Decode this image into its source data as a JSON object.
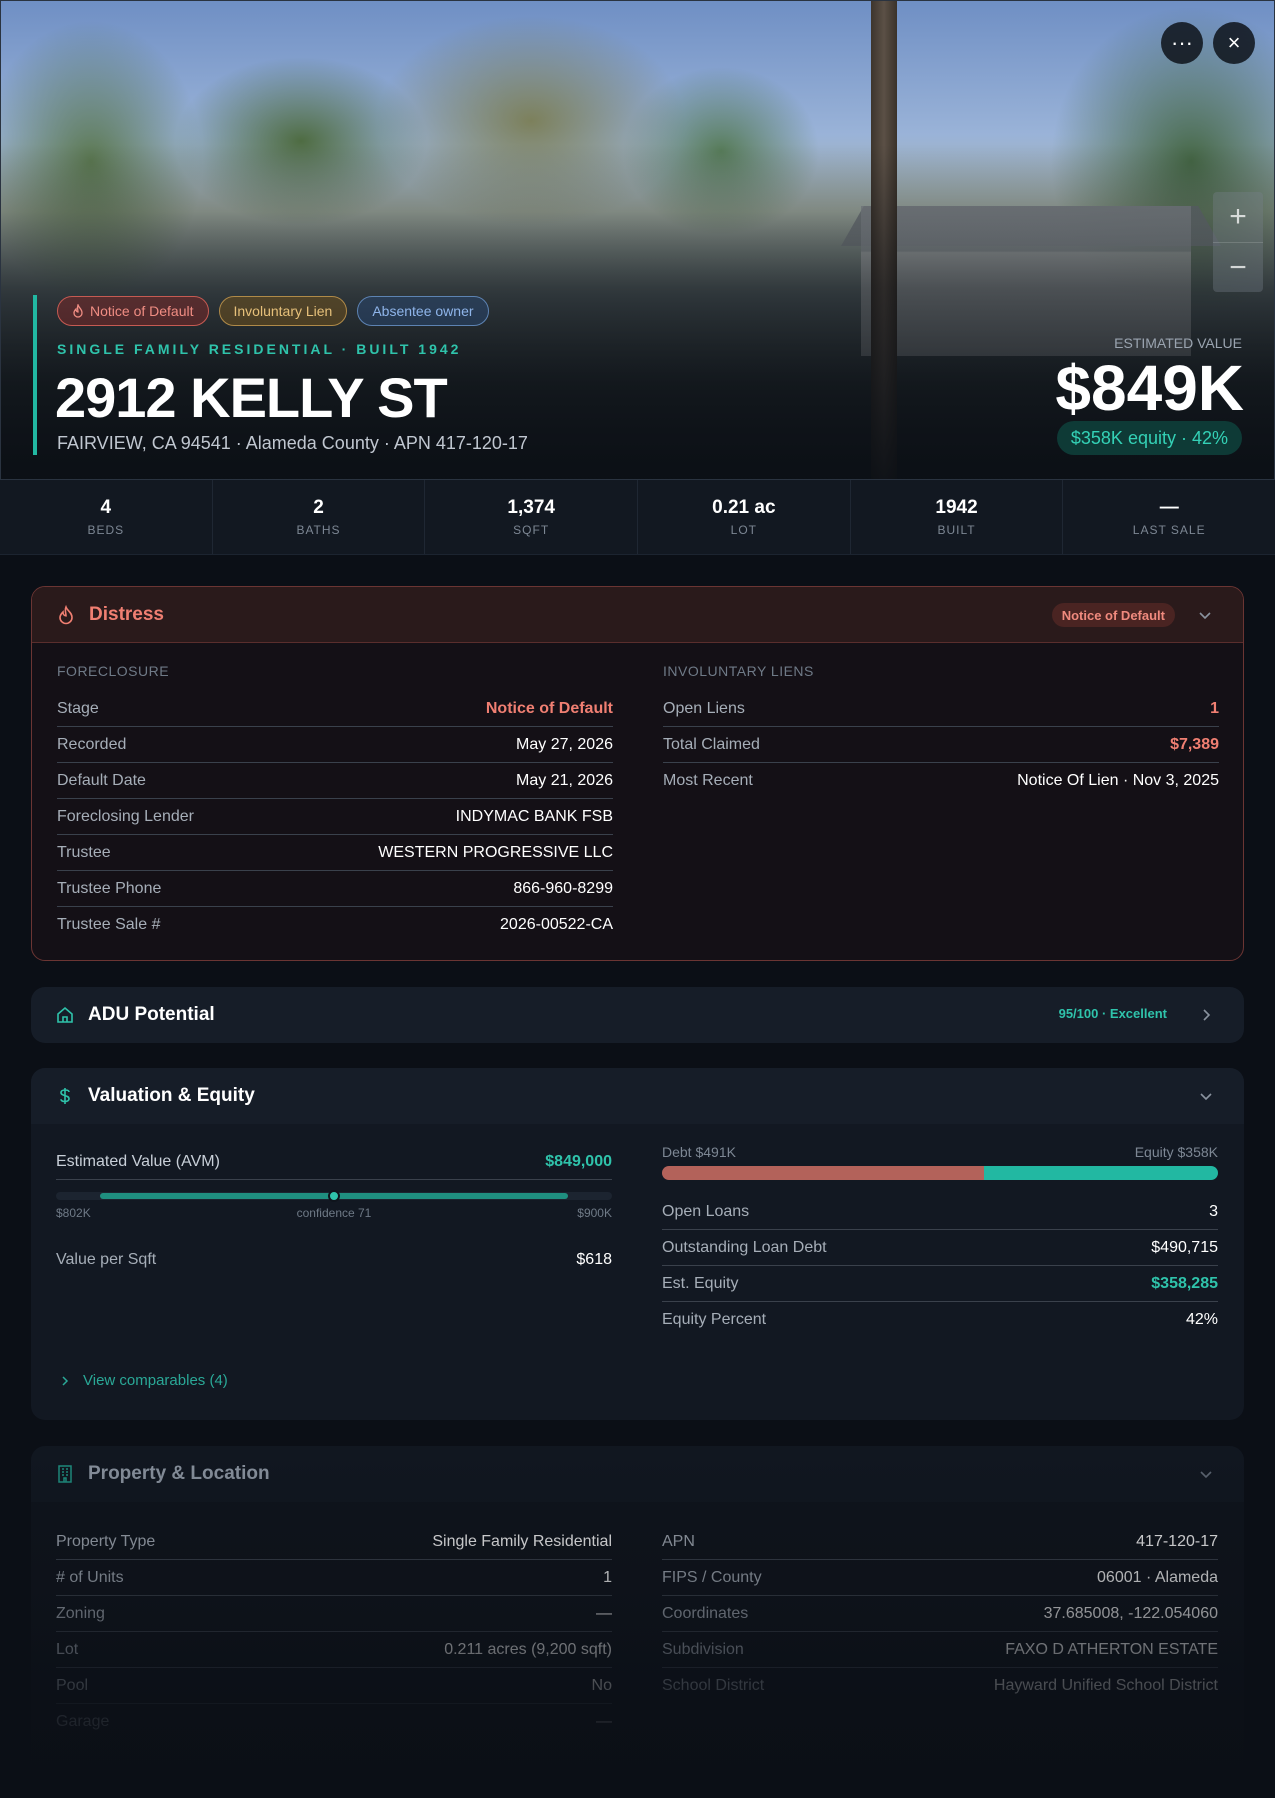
{
  "hero": {
    "tags": [
      "Notice of Default",
      "Involuntary Lien",
      "Absentee owner"
    ],
    "subtitle": "SINGLE FAMILY RESIDENTIAL · BUILT 1942",
    "address": "2912 KELLY ST",
    "location": "FAIRVIEW, CA 94541 · Alameda County · APN 417-120-17",
    "estimated_label": "ESTIMATED VALUE",
    "estimated_value": "$849K",
    "equity_pill": "$358K equity · 42%",
    "more_label": "···",
    "close_label": "×",
    "zoom_in_label": "+",
    "zoom_out_label": "−"
  },
  "stats": [
    {
      "value": "4",
      "label": "BEDS"
    },
    {
      "value": "2",
      "label": "BATHS"
    },
    {
      "value": "1,374",
      "label": "SQFT"
    },
    {
      "value": "0.21 ac",
      "label": "LOT"
    },
    {
      "value": "1942",
      "label": "BUILT"
    },
    {
      "value": "—",
      "label": "LAST SALE"
    }
  ],
  "distress": {
    "title": "Distress",
    "badge": "Notice of Default",
    "foreclosure_label": "FORECLOSURE",
    "foreclosure": [
      {
        "k": "Stage",
        "v": "Notice of Default"
      },
      {
        "k": "Recorded",
        "v": "May 27, 2026"
      },
      {
        "k": "Default Date",
        "v": "May 21, 2026"
      },
      {
        "k": "Foreclosing Lender",
        "v": "INDYMAC BANK FSB"
      },
      {
        "k": "Trustee",
        "v": "WESTERN PROGRESSIVE LLC"
      },
      {
        "k": "Trustee Phone",
        "v": "866-960-8299"
      },
      {
        "k": "Trustee Sale #",
        "v": "2026-00522-CA"
      }
    ],
    "liens_label": "INVOLUNTARY LIENS",
    "liens": [
      {
        "k": "Open Liens",
        "v": "1"
      },
      {
        "k": "Total Claimed",
        "v": "$7,389"
      },
      {
        "k": "Most Recent",
        "v": "Notice Of Lien · Nov 3, 2025"
      }
    ]
  },
  "adu": {
    "title": "ADU Potential",
    "score": "95/100 · Excellent"
  },
  "valuation": {
    "title": "Valuation & Equity",
    "avm_label": "Estimated Value (AVM)",
    "avm_value": "$849,000",
    "range_low": "$802K",
    "range_high": "$900K",
    "confidence": "confidence 71",
    "conf_fill_start": 0.08,
    "conf_fill_end": 0.92,
    "conf_point": 0.5,
    "vps_label": "Value per Sqft",
    "vps_value": "$618",
    "debt_label": "Debt $491K",
    "equity_label": "Equity $358K",
    "debt_fraction": 0.58,
    "rows": [
      {
        "k": "Open Loans",
        "v": "3"
      },
      {
        "k": "Outstanding Loan Debt",
        "v": "$490,715"
      },
      {
        "k": "Est. Equity",
        "v": "$358,285"
      },
      {
        "k": "Equity Percent",
        "v": "42%"
      }
    ],
    "comparables": "View comparables (4)"
  },
  "property": {
    "title": "Property & Location",
    "left": [
      {
        "k": "Property Type",
        "v": "Single Family Residential"
      },
      {
        "k": "# of Units",
        "v": "1"
      },
      {
        "k": "Zoning",
        "v": "—"
      },
      {
        "k": "Lot",
        "v": "0.211 acres (9,200 sqft)"
      },
      {
        "k": "Pool",
        "v": "No"
      },
      {
        "k": "Garage",
        "v": "—"
      }
    ],
    "right": [
      {
        "k": "APN",
        "v": "417-120-17"
      },
      {
        "k": "FIPS / County",
        "v": "06001 · Alameda"
      },
      {
        "k": "Coordinates",
        "v": "37.685008, -122.054060"
      },
      {
        "k": "Subdivision",
        "v": "FAXO D ATHERTON ESTATE"
      },
      {
        "k": "School District",
        "v": "Hayward Unified School District"
      }
    ]
  },
  "colors": {
    "accent": "#22b8a2",
    "distress": "#f07f72",
    "debt": "#b3625a"
  }
}
